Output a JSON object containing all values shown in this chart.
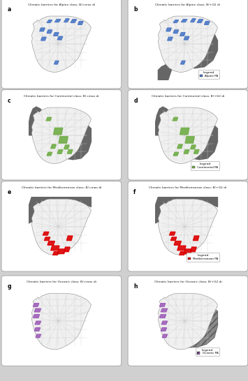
{
  "figure_bg": "#d0d0d0",
  "rows": [
    {
      "label_left": "a",
      "label_right": "b",
      "title_left": "Climatic barriers for Alpine class: B/=max di",
      "title_right": "Climatic barriers for Alpine class: B/+G2 di",
      "climate": "Alpine",
      "color": "#4472c4",
      "has_grey_left": false,
      "has_grey_right": true,
      "grey_type_left": "none",
      "grey_type_right": "alpine_south",
      "legend_label": "Alpine PA"
    },
    {
      "label_left": "c",
      "label_right": "d",
      "title_left": "Climatic barriers for Continental class: B/=max di",
      "title_right": "Climatic barriers for Continental class: B/+G2 di",
      "climate": "Continental",
      "color": "#70ad47",
      "has_grey_left": true,
      "has_grey_right": true,
      "grey_type_left": "continental",
      "grey_type_right": "continental",
      "legend_label": "Continental PA"
    },
    {
      "label_left": "e",
      "label_right": "f",
      "title_left": "Climatic barriers for Mediterranean class: B/=max di",
      "title_right": "Climatic barriers for Mediterranean class: B/+G2 di",
      "climate": "Mediterranean",
      "color": "#dd0000",
      "has_grey_left": true,
      "has_grey_right": true,
      "grey_type_left": "mediterranean",
      "grey_type_right": "mediterranean",
      "legend_label": "Mediterranean PA"
    },
    {
      "label_left": "g",
      "label_right": "h",
      "title_left": "Climatic barriers for Oceanic class: B/=max di",
      "title_right": "Climatic barriers for Oceanic class: B/+G2 di",
      "climate": "Oceanic",
      "color": "#9b59b6",
      "has_grey_left": false,
      "has_grey_right": true,
      "grey_type_left": "none",
      "grey_type_right": "oceanic",
      "legend_label": "Oceanic PA"
    }
  ]
}
